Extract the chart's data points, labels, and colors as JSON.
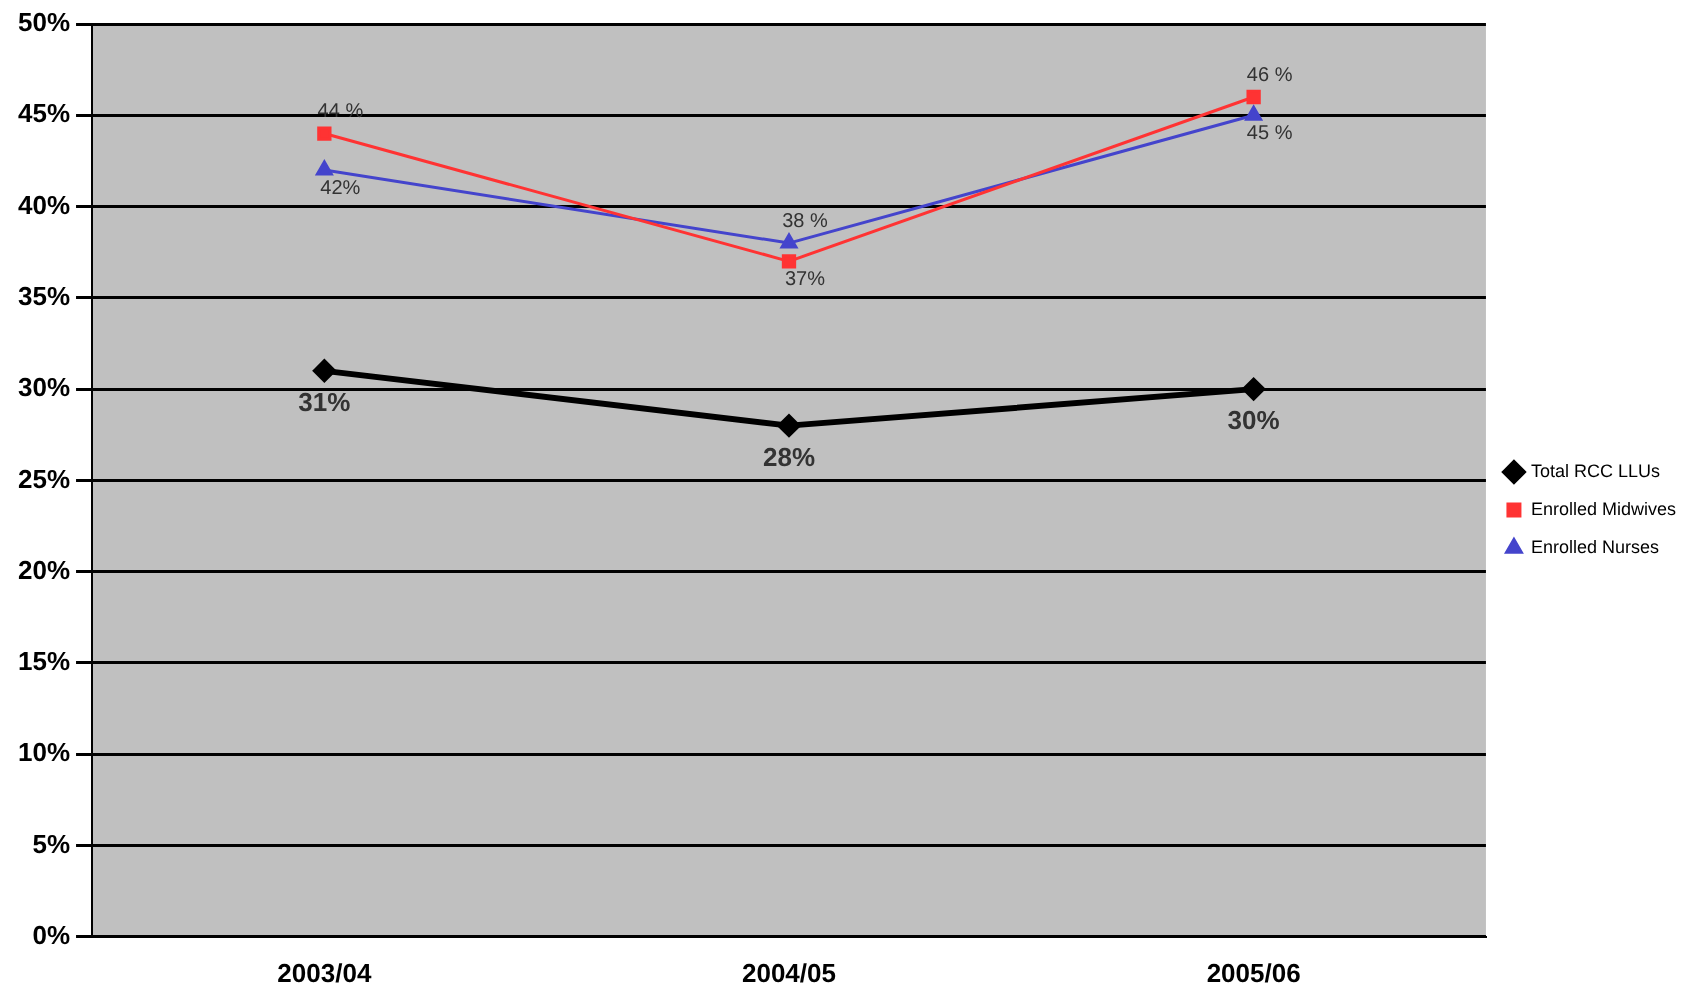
{
  "chart_data": {
    "type": "line",
    "categories": [
      "2003/04",
      "2004/05",
      "2005/06"
    ],
    "series": [
      {
        "name": "Total RCC LLUs",
        "color": "#000000",
        "marker": "diamond",
        "values": [
          31,
          28,
          30
        ],
        "value_labels": [
          "31%",
          "28%",
          "30%"
        ]
      },
      {
        "name": "Enrolled Midwives",
        "color": "#ff3333",
        "marker": "square",
        "values": [
          44,
          37,
          46
        ],
        "value_labels": [
          "44 %",
          "37%",
          "46 %"
        ]
      },
      {
        "name": "Enrolled Nurses",
        "color": "#4444cc",
        "marker": "triangle",
        "values": [
          42,
          38,
          45
        ],
        "value_labels": [
          "42%",
          "38 %",
          "45 %"
        ]
      }
    ],
    "ylim": [
      0,
      50
    ],
    "yticks": [
      {
        "value": 0,
        "label": "0%"
      },
      {
        "value": 5,
        "label": "5%"
      },
      {
        "value": 10,
        "label": "10%"
      },
      {
        "value": 15,
        "label": "15%"
      },
      {
        "value": 20,
        "label": "20%"
      },
      {
        "value": 25,
        "label": "25%"
      },
      {
        "value": 30,
        "label": "30%"
      },
      {
        "value": 35,
        "label": "35%"
      },
      {
        "value": 40,
        "label": "40%"
      },
      {
        "value": 45,
        "label": "45%"
      },
      {
        "value": 50,
        "label": "50%"
      }
    ],
    "grid": "y",
    "legend": "right"
  }
}
